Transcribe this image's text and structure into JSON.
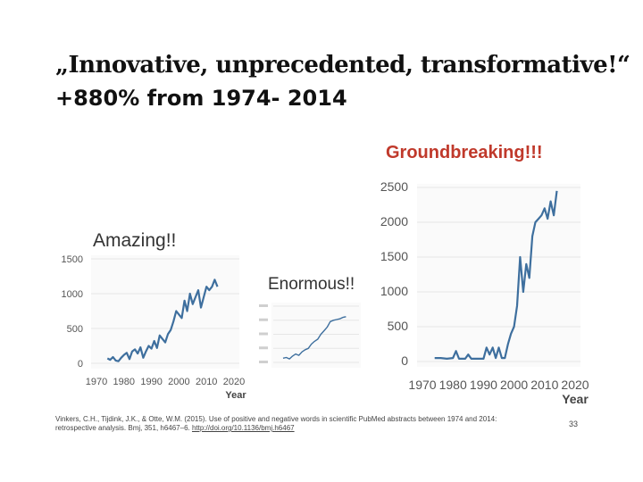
{
  "slide": {
    "title_line1": "„Innovative, unprecedented, transformative!“",
    "title_line2": "+880% from 1974- 2014",
    "citation_line1": "Vinkers, C.H., Tijdink, J.K., & Otte, W.M. (2015). Use of positive and negative words in scientific PubMed abstracts between 1974 and 2014:",
    "citation_line2_prefix": "retrospective analysis. Bmj, 351, h6467–6.",
    "citation_doi": "http://doi.org/10.1136/bmj.h6467",
    "page_number": "33"
  },
  "labels": {
    "amazing": "Amazing!!",
    "enormous": "Enormous!!",
    "groundbreaking": "Groundbreaking!!!"
  },
  "colors": {
    "line": "#3e6f9e",
    "grid": "#e6e6e6",
    "accent": "#c0392b"
  },
  "chart_data": [
    {
      "type": "line",
      "series": [
        {
          "name": "Amazing!!",
          "x": [
            1974,
            1975,
            1976,
            1977,
            1978,
            1979,
            1980,
            1981,
            1982,
            1983,
            1984,
            1985,
            1986,
            1987,
            1988,
            1989,
            1990,
            1991,
            1992,
            1993,
            1994,
            1995,
            1996,
            1997,
            1998,
            1999,
            2000,
            2001,
            2002,
            2003,
            2004,
            2005,
            2006,
            2007,
            2008,
            2009,
            2010,
            2011,
            2012,
            2013,
            2014
          ],
          "values": [
            70,
            50,
            90,
            40,
            30,
            80,
            120,
            150,
            60,
            170,
            200,
            140,
            230,
            80,
            170,
            250,
            210,
            320,
            220,
            400,
            350,
            300,
            420,
            480,
            600,
            750,
            700,
            650,
            900,
            750,
            1000,
            850,
            950,
            1050,
            800,
            950,
            1100,
            1050,
            1100,
            1200,
            1100
          ]
        }
      ],
      "xlabel": "Year",
      "xticks": [
        1970,
        1980,
        1990,
        2000,
        2010,
        2020
      ],
      "yticks": [
        0,
        500,
        1000,
        1500
      ],
      "xlim": [
        1970,
        2020
      ],
      "ylim": [
        0,
        1500
      ]
    },
    {
      "type": "line",
      "series": [
        {
          "name": "Enormous!!",
          "x": [
            1974,
            1976,
            1978,
            1980,
            1982,
            1984,
            1986,
            1988,
            1990,
            1992,
            1994,
            1996,
            1998,
            2000,
            2002,
            2004,
            2006,
            2008,
            2010,
            2012,
            2014
          ],
          "values": [
            60,
            70,
            50,
            90,
            120,
            100,
            150,
            180,
            200,
            260,
            300,
            330,
            400,
            450,
            500,
            580,
            600,
            610,
            620,
            640,
            650
          ]
        }
      ],
      "xlim": [
        1970,
        2020
      ],
      "ylim": [
        0,
        800
      ]
    },
    {
      "type": "line",
      "series": [
        {
          "name": "Groundbreaking!!!",
          "x": [
            1974,
            1976,
            1978,
            1980,
            1981,
            1982,
            1984,
            1985,
            1986,
            1988,
            1990,
            1991,
            1992,
            1993,
            1994,
            1995,
            1996,
            1997,
            1998,
            1999,
            2000,
            2001,
            2002,
            2003,
            2004,
            2005,
            2006,
            2007,
            2008,
            2009,
            2010,
            2011,
            2012,
            2013,
            2014
          ],
          "values": [
            50,
            50,
            40,
            50,
            150,
            40,
            40,
            100,
            40,
            40,
            40,
            200,
            100,
            200,
            50,
            200,
            50,
            50,
            250,
            400,
            500,
            800,
            1500,
            1000,
            1400,
            1200,
            1800,
            2000,
            2050,
            2100,
            2200,
            2050,
            2300,
            2100,
            2450
          ]
        }
      ],
      "xlabel": "Year",
      "xticks": [
        1970,
        1980,
        1990,
        2000,
        2010,
        2020
      ],
      "yticks": [
        0,
        500,
        1000,
        1500,
        2000,
        2500
      ],
      "xlim": [
        1970,
        2020
      ],
      "ylim": [
        0,
        2500
      ]
    }
  ]
}
